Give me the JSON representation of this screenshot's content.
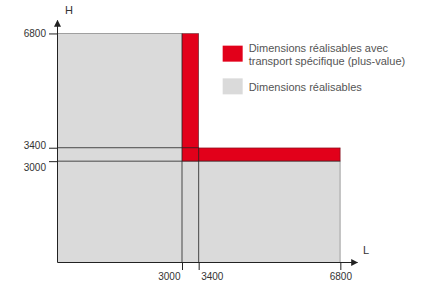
{
  "chart_data": {
    "type": "region",
    "x_label": "L",
    "y_label": "H",
    "xlim": [
      0,
      7200
    ],
    "ylim": [
      0,
      7200
    ],
    "xticks": [
      3000,
      3400,
      6800
    ],
    "yticks": [
      3000,
      3400,
      6800
    ],
    "grid": true,
    "legend": "top-right",
    "series": [
      {
        "name": "Dimensions réalisables",
        "color": "#dadada",
        "regions": [
          {
            "x": [
              0,
              3000
            ],
            "y": [
              0,
              6800
            ]
          },
          {
            "x": [
              0,
              6800
            ],
            "y": [
              0,
              3000
            ]
          }
        ]
      },
      {
        "name": "Dimensions réalisables avec transport spécifique (plus-value)",
        "color": "#e2001a",
        "regions": [
          {
            "x": [
              3000,
              3400
            ],
            "y": [
              3000,
              6800
            ]
          },
          {
            "x": [
              3000,
              6800
            ],
            "y": [
              3000,
              3400
            ]
          }
        ]
      }
    ]
  }
}
